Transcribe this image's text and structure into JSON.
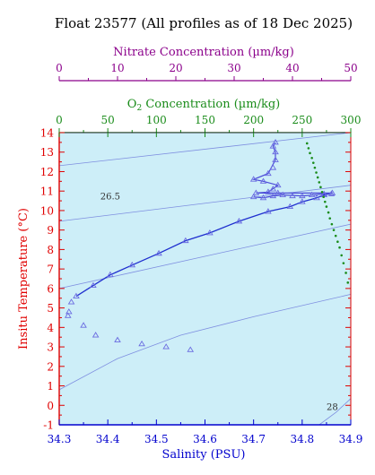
{
  "chart_data": {
    "type": "scatter",
    "title": "Float 23577  (All profiles as of 18 Dec 2025)",
    "top_axis_1": {
      "label": "Nitrate Concentration (µm/kg)",
      "range": [
        0,
        50
      ],
      "ticks": [
        0,
        10,
        20,
        30,
        40,
        50
      ],
      "color": "#8b008b"
    },
    "top_axis_2": {
      "label": "O₂ Concentration (µm/kg)",
      "range": [
        0,
        300
      ],
      "ticks": [
        0,
        50,
        100,
        150,
        200,
        250,
        300
      ],
      "color": "#1a8c1a"
    },
    "x_axis": {
      "label": "Salinity (PSU)",
      "range": [
        34.3,
        34.9
      ],
      "ticks": [
        "34.3",
        "34.4",
        "34.5",
        "34.6",
        "34.7",
        "34.8",
        "34.9"
      ],
      "color": "#0000cd"
    },
    "y_axis": {
      "label": "Insitu Temperature (°C)",
      "range": [
        -1,
        14
      ],
      "ticks": [
        -1,
        0,
        1,
        2,
        3,
        4,
        5,
        6,
        7,
        8,
        9,
        10,
        11,
        12,
        13,
        14
      ],
      "color": "#e00000"
    },
    "background": "#cdeef8",
    "grid": false,
    "density_contours": [
      {
        "label": "26.5",
        "label_s": 34.405,
        "label_t": 10.75,
        "points": [
          [
            34.3,
            9.45
          ],
          [
            34.9,
            11.3
          ]
        ]
      },
      {
        "label": "",
        "label_s": null,
        "label_t": null,
        "points": [
          [
            34.3,
            12.3
          ],
          [
            34.9,
            14.0
          ]
        ]
      },
      {
        "label": "",
        "label_s": null,
        "label_t": null,
        "points": [
          [
            34.3,
            6.0
          ],
          [
            34.9,
            9.3
          ]
        ]
      },
      {
        "label": "",
        "label_s": null,
        "label_t": null,
        "points": [
          [
            34.3,
            0.8
          ],
          [
            34.42,
            2.4
          ],
          [
            34.55,
            3.6
          ],
          [
            34.7,
            4.55
          ],
          [
            34.9,
            5.7
          ]
        ]
      },
      {
        "label": "28",
        "label_s": 34.862,
        "label_t": -0.05,
        "points": [
          [
            34.835,
            -1.0
          ],
          [
            34.87,
            -0.35
          ],
          [
            34.9,
            0.35
          ]
        ]
      }
    ],
    "series": [
      {
        "marker": "triangle",
        "color": "#6a6ae0",
        "points": [
          [
            34.32,
            4.8
          ],
          [
            34.318,
            4.6
          ],
          [
            34.325,
            5.3
          ],
          [
            34.35,
            4.1
          ],
          [
            34.375,
            3.6
          ],
          [
            34.42,
            3.35
          ],
          [
            34.47,
            3.15
          ],
          [
            34.52,
            3.0
          ],
          [
            34.57,
            2.85
          ],
          [
            34.335,
            5.6
          ],
          [
            34.37,
            6.15
          ],
          [
            34.405,
            6.7
          ],
          [
            34.45,
            7.2
          ],
          [
            34.505,
            7.8
          ],
          [
            34.56,
            8.45
          ],
          [
            34.61,
            8.85
          ],
          [
            34.67,
            9.45
          ],
          [
            34.73,
            9.95
          ],
          [
            34.775,
            10.2
          ],
          [
            34.8,
            10.45
          ],
          [
            34.83,
            10.65
          ],
          [
            34.845,
            10.8
          ],
          [
            34.86,
            10.85
          ],
          [
            34.7,
            10.7
          ],
          [
            34.72,
            10.65
          ],
          [
            34.74,
            10.75
          ],
          [
            34.75,
            10.9
          ],
          [
            34.76,
            10.8
          ],
          [
            34.78,
            10.75
          ],
          [
            34.8,
            10.75
          ],
          [
            34.82,
            10.8
          ],
          [
            34.845,
            10.85
          ],
          [
            34.862,
            10.9
          ],
          [
            34.705,
            10.9
          ],
          [
            34.73,
            10.95
          ],
          [
            34.74,
            11.1
          ],
          [
            34.75,
            11.3
          ],
          [
            34.72,
            11.5
          ],
          [
            34.7,
            11.6
          ],
          [
            34.73,
            11.9
          ],
          [
            34.74,
            12.2
          ],
          [
            34.745,
            12.6
          ],
          [
            34.745,
            13.0
          ],
          [
            34.74,
            13.3
          ],
          [
            34.745,
            13.5
          ]
        ]
      },
      {
        "marker": "dot",
        "color": "#1a8c1a",
        "points": [
          [
            34.81,
            13.45
          ],
          [
            34.813,
            13.2
          ],
          [
            34.816,
            12.95
          ],
          [
            34.82,
            12.7
          ],
          [
            34.823,
            12.45
          ],
          [
            34.826,
            12.2
          ],
          [
            34.829,
            11.95
          ],
          [
            34.832,
            11.7
          ],
          [
            34.835,
            11.45
          ],
          [
            34.838,
            11.2
          ],
          [
            34.841,
            10.95
          ],
          [
            34.844,
            10.7
          ],
          [
            34.847,
            10.45
          ],
          [
            34.85,
            10.2
          ],
          [
            34.854,
            9.9
          ],
          [
            34.857,
            9.6
          ],
          [
            34.861,
            9.3
          ],
          [
            34.865,
            9.0
          ],
          [
            34.869,
            8.7
          ],
          [
            34.873,
            8.4
          ],
          [
            34.877,
            8.1
          ],
          [
            34.881,
            7.7
          ],
          [
            34.885,
            7.3
          ],
          [
            34.89,
            6.8
          ],
          [
            34.894,
            6.3
          ]
        ]
      }
    ]
  }
}
